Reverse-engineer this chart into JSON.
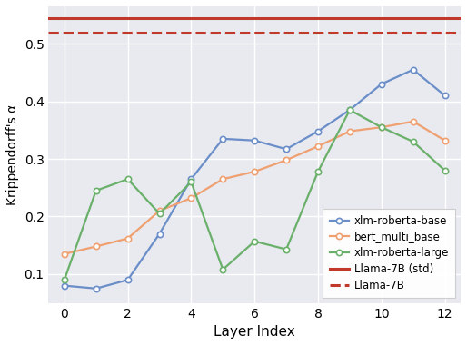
{
  "xlm_roberta_base_x": [
    0,
    1,
    2,
    3,
    4,
    5,
    6,
    7,
    8,
    9,
    10,
    11,
    12
  ],
  "xlm_roberta_base_y": [
    0.08,
    0.075,
    0.09,
    0.17,
    0.265,
    0.335,
    0.332,
    0.317,
    0.348,
    0.385,
    0.43,
    0.455,
    0.41
  ],
  "bert_multi_base_x": [
    0,
    1,
    2,
    3,
    4,
    5,
    6,
    7,
    8,
    9,
    10,
    11,
    12
  ],
  "bert_multi_base_y": [
    0.135,
    0.148,
    0.162,
    0.21,
    0.232,
    0.265,
    0.278,
    0.298,
    0.322,
    0.348,
    0.355,
    0.365,
    0.332
  ],
  "xlm_roberta_large_x": [
    0,
    1,
    2,
    3,
    4,
    5,
    6,
    7,
    8,
    9,
    10,
    11,
    12
  ],
  "xlm_roberta_large_y": [
    0.09,
    0.245,
    0.265,
    0.205,
    0.26,
    0.108,
    0.157,
    0.143,
    0.278,
    0.385,
    0.355,
    0.33,
    0.28
  ],
  "llama_7b_std": 0.545,
  "llama_7b": 0.519,
  "xlm_roberta_base_color": "#6b8ec9",
  "bert_multi_base_color": "#f0a070",
  "xlm_roberta_large_color": "#6ab06a",
  "llama_std_color": "#c0392b",
  "llama_color": "#c0392b",
  "xlabel": "Layer Index",
  "ylabel": "Krippendorff's α",
  "ylim_min": 0.05,
  "ylim_max": 0.565,
  "yticks": [
    0.1,
    0.2,
    0.3,
    0.4,
    0.5
  ],
  "xticks": [
    0,
    2,
    4,
    6,
    8,
    10,
    12
  ],
  "bg_color": "#e8eaf0",
  "legend_labels": [
    "xlm-roberta-base",
    "bert_multi_base",
    "xlm-roberta-large",
    "Llama-7B (std)",
    "Llama-7B"
  ],
  "legend_loc": "lower right",
  "figsize": [
    5.14,
    3.8
  ],
  "dpi": 100
}
